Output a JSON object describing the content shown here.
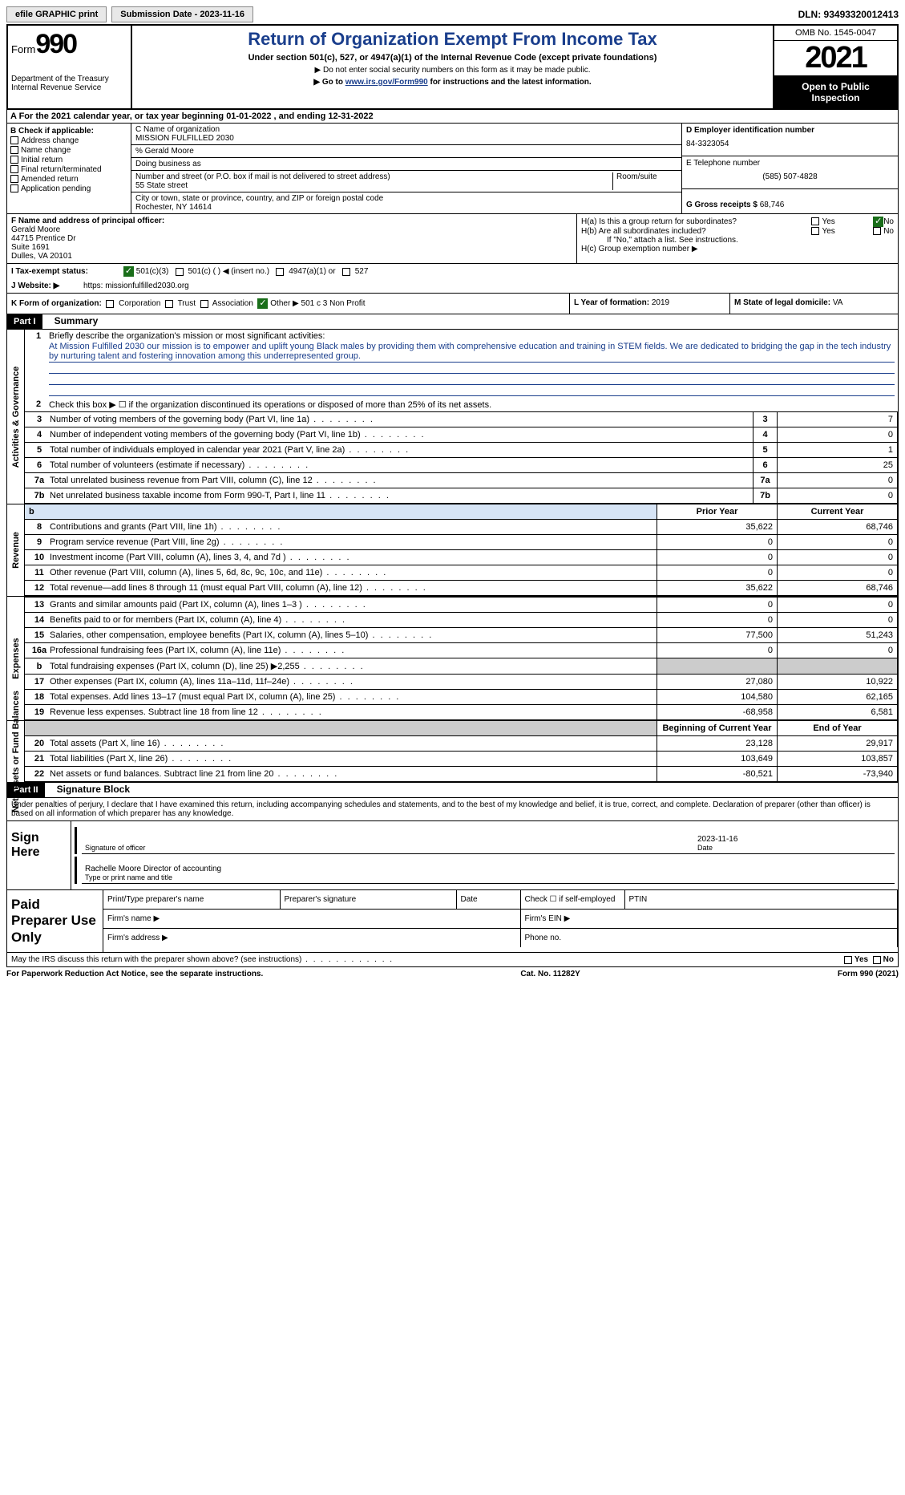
{
  "top_bar": {
    "efile_label": "efile GRAPHIC print",
    "submission_label": "Submission Date - 2023-11-16",
    "dln_label": "DLN: 93493320012413"
  },
  "header": {
    "form_word": "Form",
    "form_num": "990",
    "dept": "Department of the Treasury Internal Revenue Service",
    "title": "Return of Organization Exempt From Income Tax",
    "subtitle": "Under section 501(c), 527, or 4947(a)(1) of the Internal Revenue Code (except private foundations)",
    "note1": "▶ Do not enter social security numbers on this form as it may be made public.",
    "note2_pre": "▶ Go to ",
    "note2_link": "www.irs.gov/Form990",
    "note2_post": " for instructions and the latest information.",
    "omb": "OMB No. 1545-0047",
    "year": "2021",
    "open_public": "Open to Public Inspection"
  },
  "row_A": "A  For the 2021 calendar year, or tax year beginning 01-01-2022   , and ending 12-31-2022",
  "col_B": {
    "label": "B Check if applicable:",
    "items": [
      "Address change",
      "Name change",
      "Initial return",
      "Final return/terminated",
      "Amended return",
      "Application pending"
    ]
  },
  "col_C": {
    "name_label": "C Name of organization",
    "name": "MISSION FULFILLED 2030",
    "care_of": "% Gerald Moore",
    "dba_label": "Doing business as",
    "street_label": "Number and street (or P.O. box if mail is not delivered to street address)",
    "street": "55 State street",
    "suite_label": "Room/suite",
    "city_label": "City or town, state or province, country, and ZIP or foreign postal code",
    "city": "Rochester, NY  14614"
  },
  "col_D": {
    "ein_label": "D Employer identification number",
    "ein": "84-3323054",
    "phone_label": "E Telephone number",
    "phone": "(585) 507-4828",
    "receipts_label": "G Gross receipts $",
    "receipts": "68,746"
  },
  "col_F": {
    "label": "F  Name and address of principal officer:",
    "name": "Gerald Moore",
    "addr1": "44715 Prentice Dr",
    "addr2": "Suite 1691",
    "addr3": "Dulles, VA  20101"
  },
  "col_H": {
    "ha": "H(a)  Is this a group return for subordinates?",
    "hb": "H(b)  Are all subordinates included?",
    "hb_note": "If \"No,\" attach a list. See instructions.",
    "hc": "H(c)  Group exemption number ▶",
    "yes": "Yes",
    "no": "No"
  },
  "row_I": {
    "label": "I  Tax-exempt status:",
    "opt1": "501(c)(3)",
    "opt2": "501(c) (  ) ◀ (insert no.)",
    "opt3": "4947(a)(1) or",
    "opt4": "527"
  },
  "row_J": {
    "label": "J  Website: ▶",
    "value": "https: missionfulfilled2030.org"
  },
  "row_K": {
    "label": "K Form of organization:",
    "opts": [
      "Corporation",
      "Trust",
      "Association",
      "Other ▶"
    ],
    "other_val": "501 c 3 Non Profit"
  },
  "col_L": {
    "label": "L Year of formation:",
    "value": "2019"
  },
  "col_M": {
    "label": "M State of legal domicile:",
    "value": "VA"
  },
  "part1": {
    "hdr": "Part I",
    "title": "Summary",
    "sec1_label": "Activities & Governance",
    "line1_label": "Briefly describe the organization's mission or most significant activities:",
    "line1_text": "At Mission Fulfilled 2030 our mission is to empower and uplift young Black males by providing them with comprehensive education and training in STEM fields. We are dedicated to bridging the gap in the tech industry by nurturing talent and fostering innovation among this underrepresented group.",
    "line2": "Check this box ▶ ☐ if the organization discontinued its operations or disposed of more than 25% of its net assets.",
    "rows_gov": [
      {
        "n": "3",
        "t": "Number of voting members of the governing body (Part VI, line 1a)",
        "v": "7"
      },
      {
        "n": "4",
        "t": "Number of independent voting members of the governing body (Part VI, line 1b)",
        "v": "0"
      },
      {
        "n": "5",
        "t": "Total number of individuals employed in calendar year 2021 (Part V, line 2a)",
        "v": "1"
      },
      {
        "n": "6",
        "t": "Total number of volunteers (estimate if necessary)",
        "v": "25"
      },
      {
        "n": "7a",
        "t": "Total unrelated business revenue from Part VIII, column (C), line 12",
        "v": "0"
      },
      {
        "n": "7b",
        "t": "Net unrelated business taxable income from Form 990-T, Part I, line 11",
        "v": "0"
      }
    ],
    "sec2_label": "Revenue",
    "hdr_prior": "Prior Year",
    "hdr_current": "Current Year",
    "rows_rev": [
      {
        "n": "8",
        "t": "Contributions and grants (Part VIII, line 1h)",
        "p": "35,622",
        "c": "68,746"
      },
      {
        "n": "9",
        "t": "Program service revenue (Part VIII, line 2g)",
        "p": "0",
        "c": "0"
      },
      {
        "n": "10",
        "t": "Investment income (Part VIII, column (A), lines 3, 4, and 7d )",
        "p": "0",
        "c": "0"
      },
      {
        "n": "11",
        "t": "Other revenue (Part VIII, column (A), lines 5, 6d, 8c, 9c, 10c, and 11e)",
        "p": "0",
        "c": "0"
      },
      {
        "n": "12",
        "t": "Total revenue—add lines 8 through 11 (must equal Part VIII, column (A), line 12)",
        "p": "35,622",
        "c": "68,746"
      }
    ],
    "sec3_label": "Expenses",
    "rows_exp": [
      {
        "n": "13",
        "t": "Grants and similar amounts paid (Part IX, column (A), lines 1–3 )",
        "p": "0",
        "c": "0"
      },
      {
        "n": "14",
        "t": "Benefits paid to or for members (Part IX, column (A), line 4)",
        "p": "0",
        "c": "0"
      },
      {
        "n": "15",
        "t": "Salaries, other compensation, employee benefits (Part IX, column (A), lines 5–10)",
        "p": "77,500",
        "c": "51,243"
      },
      {
        "n": "16a",
        "t": "Professional fundraising fees (Part IX, column (A), line 11e)",
        "p": "0",
        "c": "0"
      },
      {
        "n": "b",
        "t": "Total fundraising expenses (Part IX, column (D), line 25) ▶2,255",
        "p": "shaded",
        "c": "shaded"
      },
      {
        "n": "17",
        "t": "Other expenses (Part IX, column (A), lines 11a–11d, 11f–24e)",
        "p": "27,080",
        "c": "10,922"
      },
      {
        "n": "18",
        "t": "Total expenses. Add lines 13–17 (must equal Part IX, column (A), line 25)",
        "p": "104,580",
        "c": "62,165"
      },
      {
        "n": "19",
        "t": "Revenue less expenses. Subtract line 18 from line 12",
        "p": "-68,958",
        "c": "6,581"
      }
    ],
    "sec4_label": "Net Assets or Fund Balances",
    "hdr_begin": "Beginning of Current Year",
    "hdr_end": "End of Year",
    "rows_net": [
      {
        "n": "20",
        "t": "Total assets (Part X, line 16)",
        "p": "23,128",
        "c": "29,917"
      },
      {
        "n": "21",
        "t": "Total liabilities (Part X, line 26)",
        "p": "103,649",
        "c": "103,857"
      },
      {
        "n": "22",
        "t": "Net assets or fund balances. Subtract line 21 from line 20",
        "p": "-80,521",
        "c": "-73,940"
      }
    ]
  },
  "part2": {
    "hdr": "Part II",
    "title": "Signature Block",
    "decl": "Under penalties of perjury, I declare that I have examined this return, including accompanying schedules and statements, and to the best of my knowledge and belief, it is true, correct, and complete. Declaration of preparer (other than officer) is based on all information of which preparer has any knowledge.",
    "sign_here": "Sign Here",
    "sig_officer": "Signature of officer",
    "sig_date": "Date",
    "sig_date_val": "2023-11-16",
    "sig_name": "Rachelle Moore  Director of accounting",
    "sig_name_label": "Type or print name and title",
    "paid": "Paid Preparer Use Only",
    "p_name": "Print/Type preparer's name",
    "p_sig": "Preparer's signature",
    "p_date": "Date",
    "p_check": "Check ☐ if self-employed",
    "p_ptin": "PTIN",
    "p_firm": "Firm's name    ▶",
    "p_ein": "Firm's EIN ▶",
    "p_addr": "Firm's address ▶",
    "p_phone": "Phone no.",
    "discuss": "May the IRS discuss this return with the preparer shown above? (see instructions)",
    "yes": "Yes",
    "no": "No"
  },
  "footer": {
    "left": "For Paperwork Reduction Act Notice, see the separate instructions.",
    "mid": "Cat. No. 11282Y",
    "right": "Form 990 (2021)"
  }
}
